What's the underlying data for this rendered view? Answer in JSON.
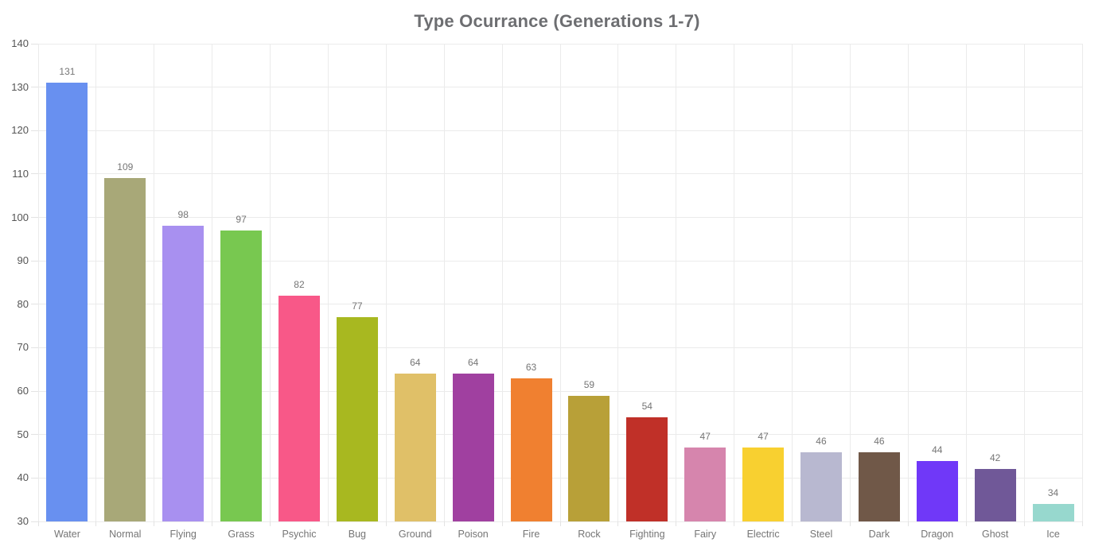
{
  "title": "Type Ocurrance (Generations 1-7)",
  "chart_data": {
    "type": "bar",
    "title": "Type Ocurrance (Generations 1-7)",
    "xlabel": "",
    "ylabel": "",
    "categories": [
      "Water",
      "Normal",
      "Flying",
      "Grass",
      "Psychic",
      "Bug",
      "Ground",
      "Poison",
      "Fire",
      "Rock",
      "Fighting",
      "Fairy",
      "Electric",
      "Steel",
      "Dark",
      "Dragon",
      "Ghost",
      "Ice"
    ],
    "values": [
      131,
      109,
      98,
      97,
      82,
      77,
      64,
      64,
      63,
      59,
      54,
      47,
      47,
      46,
      46,
      44,
      42,
      34
    ],
    "bar_colors": [
      "#6890F0",
      "#A8A878",
      "#A890F0",
      "#78C850",
      "#F85888",
      "#A8B820",
      "#E0C068",
      "#A040A0",
      "#F08030",
      "#B8A038",
      "#C03028",
      "#D685AD",
      "#F8D030",
      "#B8B8D0",
      "#705848",
      "#7038F8",
      "#705898",
      "#97D8CE"
    ],
    "ylim": [
      30,
      140
    ],
    "ytick_step": 10,
    "ytick_labels": [
      "30",
      "40",
      "50",
      "60",
      "70",
      "80",
      "90",
      "100",
      "110",
      "120",
      "130",
      "140"
    ],
    "grid": "both",
    "legend": "none",
    "value_labels_position": "above-bars"
  },
  "styles": {
    "background_color": "#FFFFFF",
    "title_color": "#6D6E71",
    "grid_color": "#EBEBEB",
    "y_tick_label_color": "#555555",
    "value_label_color": "#757575",
    "category_label_color": "#757575"
  }
}
